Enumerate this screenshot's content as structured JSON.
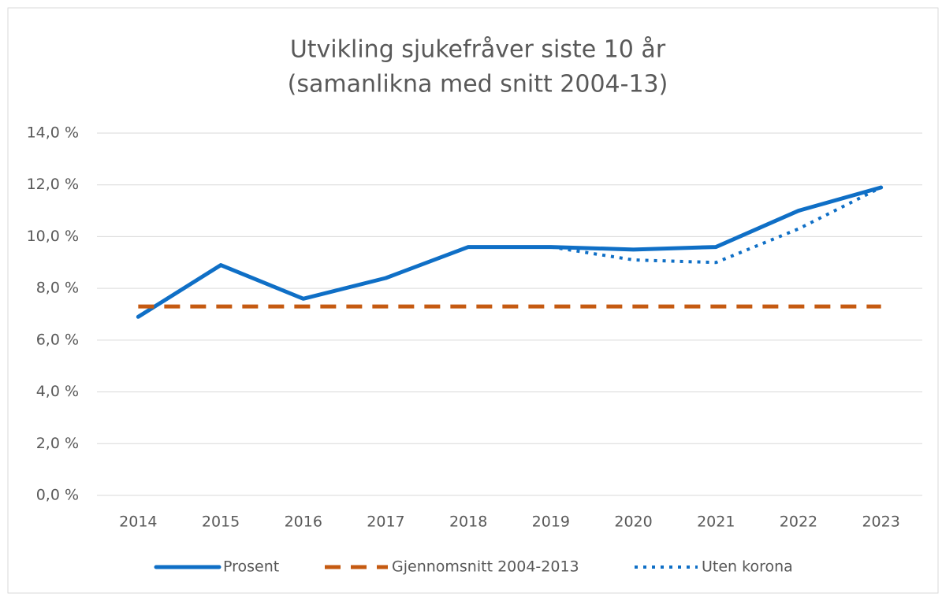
{
  "chart_data": {
    "type": "line",
    "title": [
      "Utvikling sjukefråver siste 10 år",
      "(samanlikna med snitt 2004-13)"
    ],
    "categories": [
      "2014",
      "2015",
      "2016",
      "2017",
      "2018",
      "2019",
      "2020",
      "2021",
      "2022",
      "2023"
    ],
    "series": [
      {
        "name": "Prosent",
        "color": "#0f6fc6",
        "style": "solid",
        "values": [
          6.9,
          8.9,
          7.6,
          8.4,
          9.6,
          9.6,
          9.5,
          9.6,
          11.0,
          11.9
        ]
      },
      {
        "name": "Gjennomsnitt 2004-2013",
        "color": "#c55a11",
        "style": "dashed",
        "values": [
          7.3,
          7.3,
          7.3,
          7.3,
          7.3,
          7.3,
          7.3,
          7.3,
          7.3,
          7.3
        ]
      },
      {
        "name": "Uten korona",
        "color": "#0f6fc6",
        "style": "dotted",
        "values": [
          null,
          null,
          null,
          null,
          null,
          9.6,
          9.1,
          9.0,
          10.3,
          11.9
        ]
      }
    ],
    "ylim": [
      0,
      14
    ],
    "yticks": [
      {
        "value": 0,
        "label": "0,0 %"
      },
      {
        "value": 2,
        "label": "2,0 %"
      },
      {
        "value": 4,
        "label": "4,0 %"
      },
      {
        "value": 6,
        "label": "6,0 %"
      },
      {
        "value": 8,
        "label": "8,0 %"
      },
      {
        "value": 10,
        "label": "10,0 %"
      },
      {
        "value": 12,
        "label": "12,0 %"
      },
      {
        "value": 14,
        "label": "14,0 %"
      }
    ],
    "grid": true,
    "legend": "bottom"
  }
}
